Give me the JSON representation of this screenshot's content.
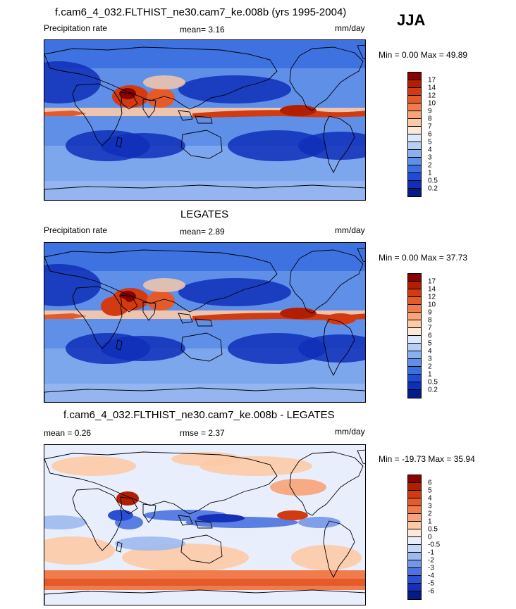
{
  "season": "JJA",
  "panels": [
    {
      "title": "f.cam6_4_032.FLTHIST_ne30.cam7_ke.008b (yrs 1995-2004)",
      "left_label": "Precipitation rate",
      "center_label": "mean=  3.16",
      "units": "mm/day",
      "minmax": "Min =   0.00 Max =  49.89",
      "scale": "abs",
      "colorbar": {
        "labels": [
          "17",
          "14",
          "12",
          "10",
          "9",
          "8",
          "7",
          "6",
          "5",
          "4",
          "3",
          "2",
          "1",
          "0.5",
          "0.2"
        ],
        "colors": [
          "#8b0000",
          "#b41e00",
          "#d23a10",
          "#e45a2a",
          "#f07c4c",
          "#f8a378",
          "#fdcaa6",
          "#fbe8d8",
          "#dce8fb",
          "#b8cff5",
          "#8ab0ef",
          "#5f8fe7",
          "#3b6fe0",
          "#1f4bd6",
          "#0f2fb8",
          "#051b85"
        ]
      },
      "stats": {
        "mean": 3.16,
        "min": 0.0,
        "max": 49.89
      }
    },
    {
      "title": "LEGATES",
      "left_label": "Precipitation rate",
      "center_label": "mean=  2.89",
      "units": "mm/day",
      "minmax": "Min =   0.00 Max =  37.73",
      "scale": "abs",
      "colorbar": {
        "labels": [
          "17",
          "14",
          "12",
          "10",
          "9",
          "8",
          "7",
          "6",
          "5",
          "4",
          "3",
          "2",
          "1",
          "0.5",
          "0.2"
        ],
        "colors": [
          "#8b0000",
          "#b41e00",
          "#d23a10",
          "#e45a2a",
          "#f07c4c",
          "#f8a378",
          "#fdcaa6",
          "#fbe8d8",
          "#dce8fb",
          "#b8cff5",
          "#8ab0ef",
          "#5f8fe7",
          "#3b6fe0",
          "#1f4bd6",
          "#0f2fb8",
          "#051b85"
        ]
      },
      "stats": {
        "mean": 2.89,
        "min": 0.0,
        "max": 37.73
      }
    },
    {
      "title": "f.cam6_4_032.FLTHIST_ne30.cam7_ke.008b - LEGATES",
      "left_label": "mean =   0.26",
      "center_label": "rmse =   2.37",
      "units": "mm/day",
      "minmax": "Min = -19.73 Max =  35.94",
      "scale": "diff",
      "colorbar": {
        "labels": [
          "6",
          "5",
          "4",
          "3",
          "2",
          "1",
          "0.5",
          "0",
          "-0.5",
          "-1",
          "-2",
          "-3",
          "-4",
          "-5",
          "-6"
        ],
        "colors": [
          "#8b0000",
          "#b41e00",
          "#d23a10",
          "#e45a2a",
          "#f07c4c",
          "#f8a378",
          "#fdcaa6",
          "#fbe8d8",
          "#e8eefb",
          "#c6d6f6",
          "#9fb9f0",
          "#7396e8",
          "#4a72e0",
          "#2a4fd4",
          "#1430b5",
          "#061a85"
        ]
      },
      "stats": {
        "mean": 0.26,
        "rmse": 2.37,
        "min": -19.73,
        "max": 35.94
      }
    }
  ]
}
